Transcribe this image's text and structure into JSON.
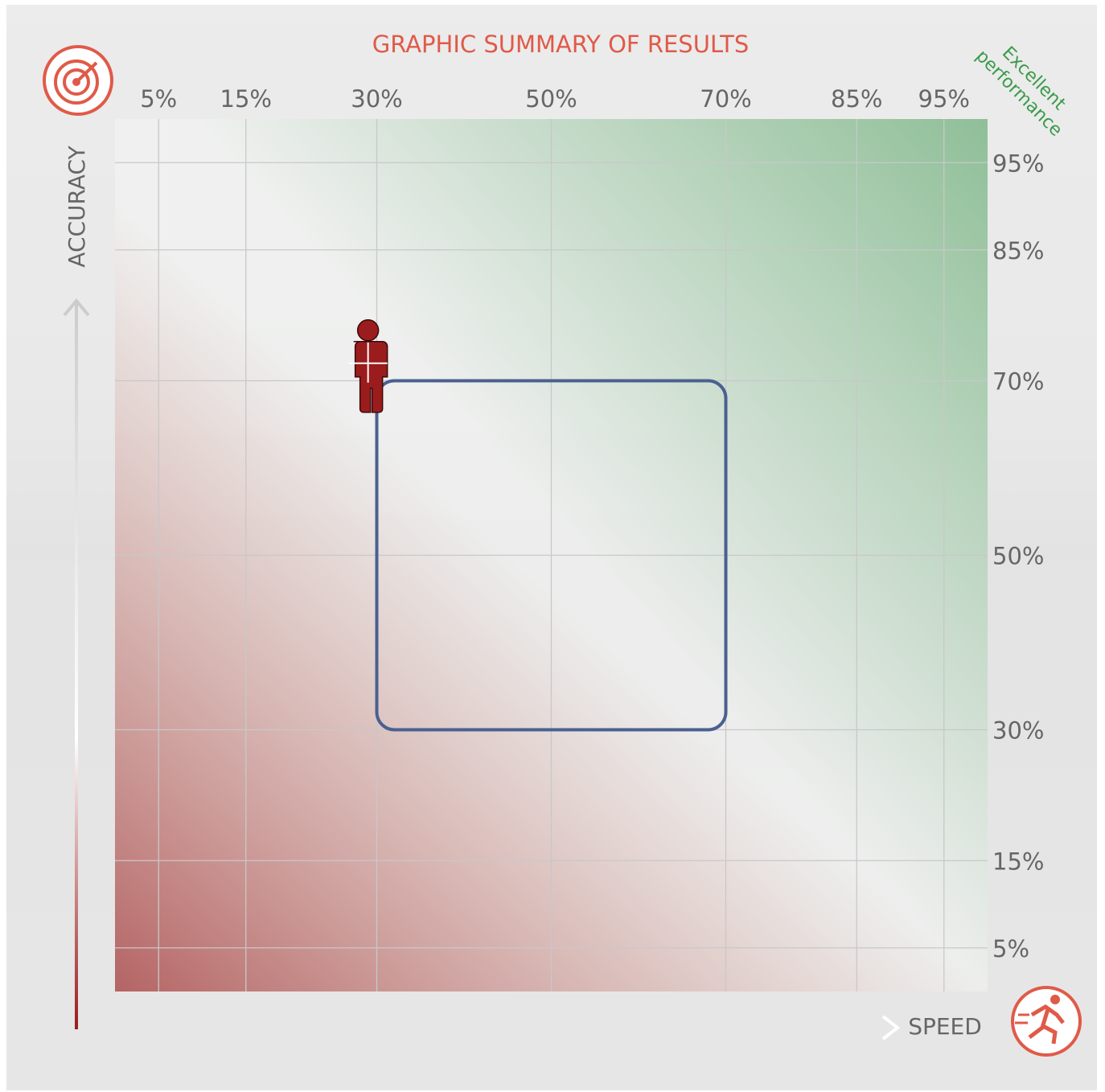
{
  "chart_data": {
    "type": "scatter",
    "title": "GRAPHIC SUMMARY OF RESULTS",
    "x_label": "SPEED",
    "y_label": "ACCURACY",
    "annotation": [
      "Excellent",
      "performance"
    ],
    "xlim": [
      0,
      100
    ],
    "ylim": [
      0,
      100
    ],
    "xticks": [
      {
        "value": 5,
        "label": "5%"
      },
      {
        "value": 15,
        "label": "15%"
      },
      {
        "value": 30,
        "label": "30%"
      },
      {
        "value": 50,
        "label": "50%"
      },
      {
        "value": 70,
        "label": "70%"
      },
      {
        "value": 85,
        "label": "85%"
      },
      {
        "value": 95,
        "label": "95%"
      }
    ],
    "yticks": [
      {
        "value": 5,
        "label": "5%"
      },
      {
        "value": 15,
        "label": "15%"
      },
      {
        "value": 30,
        "label": "30%"
      },
      {
        "value": 50,
        "label": "50%"
      },
      {
        "value": 70,
        "label": "70%"
      },
      {
        "value": 85,
        "label": "85%"
      },
      {
        "value": 95,
        "label": "95%"
      }
    ],
    "grid": true,
    "points": [
      {
        "x": 29,
        "y": 72
      }
    ],
    "color": "#9b1c1c",
    "target_zone": {
      "x": [
        30,
        70
      ],
      "y": [
        30,
        70
      ],
      "color": "#4a6090"
    }
  }
}
